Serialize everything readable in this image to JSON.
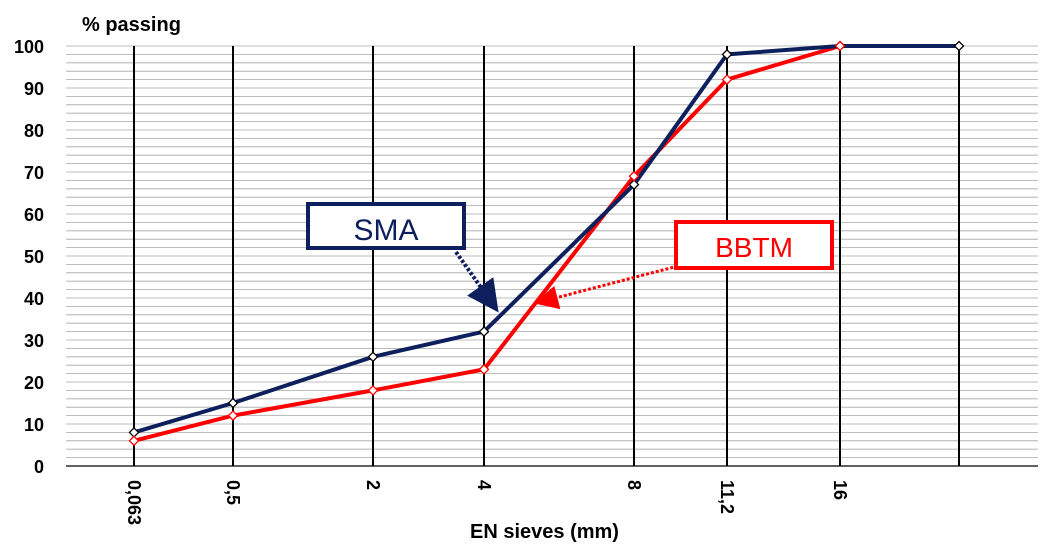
{
  "chart_data": {
    "type": "line",
    "ylabel": "% passing",
    "xlabel": "EN sieves (mm)",
    "ylim": [
      0,
      100
    ],
    "yticks": [
      0,
      10,
      20,
      30,
      40,
      50,
      60,
      70,
      80,
      90,
      100
    ],
    "categories": [
      "0,063",
      "0,5",
      "2",
      "4",
      "8",
      "11,2",
      "16",
      ""
    ],
    "grid": {
      "major_vertical": true,
      "minor_horizontal": true
    },
    "series": [
      {
        "name": "SMA",
        "color": "#0d1f5c",
        "values": [
          8,
          15,
          26,
          32,
          67,
          98,
          100,
          100
        ]
      },
      {
        "name": "BBTM",
        "color": "#ff0000",
        "values": [
          6,
          12,
          18,
          23,
          69,
          92,
          100,
          null
        ]
      }
    ],
    "annotations": [
      {
        "label": "SMA",
        "series": "SMA",
        "text_color": "#0d1f5c",
        "border_color": "#0d1f5c"
      },
      {
        "label": "BBTM",
        "series": "BBTM",
        "text_color": "#ff0000",
        "border_color": "#ff0000"
      }
    ]
  }
}
